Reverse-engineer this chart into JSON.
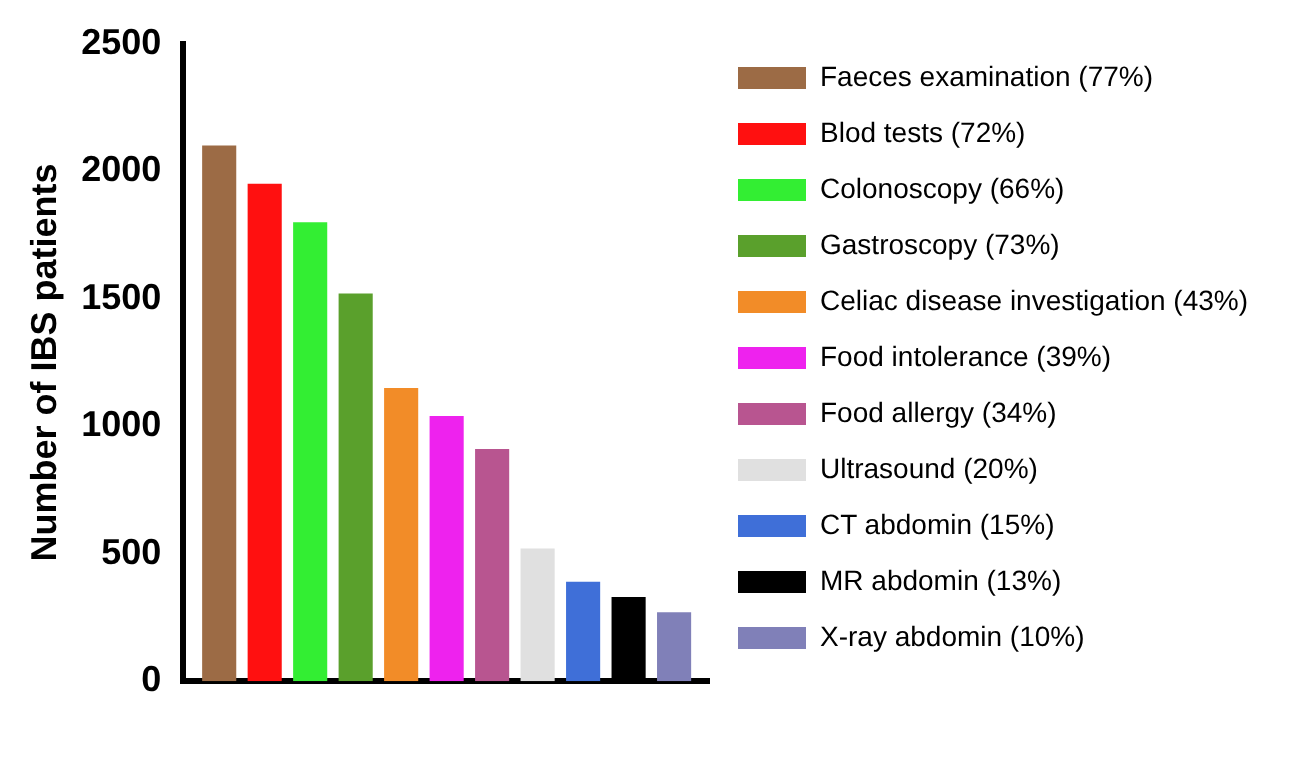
{
  "chart_data": {
    "type": "bar",
    "ylabel": "Number of IBS patients",
    "categories": [
      null
    ],
    "ylim": [
      0,
      2500
    ],
    "yticks": [
      0,
      500,
      1000,
      1500,
      2000,
      2500
    ],
    "grid": false,
    "legend": "right",
    "series": [
      {
        "name": "Faeces examination (77%)",
        "color": "#9c6b45",
        "values": [
          2100
        ]
      },
      {
        "name": "Blod tests (72%)",
        "color": "#ff1010",
        "values": [
          1950
        ]
      },
      {
        "name": "Colonoscopy (66%)",
        "color": "#33ee33",
        "values": [
          1800
        ]
      },
      {
        "name": "Gastroscopy (73%)",
        "color": "#5aa02c",
        "values": [
          1520
        ]
      },
      {
        "name": "Celiac disease investigation (43%)",
        "color": "#f28c28",
        "values": [
          1150
        ]
      },
      {
        "name": "Food intolerance (39%)",
        "color": "#ee22ee",
        "values": [
          1040
        ]
      },
      {
        "name": "Food allergy (34%)",
        "color": "#b85590",
        "values": [
          910
        ]
      },
      {
        "name": "Ultrasound (20%)",
        "color": "#e0e0e0",
        "values": [
          520
        ]
      },
      {
        "name": "CT abdomin (15%)",
        "color": "#3f6fd8",
        "values": [
          390
        ]
      },
      {
        "name": "MR abdomin (13%)",
        "color": "#000000",
        "values": [
          330
        ]
      },
      {
        "name": "X-ray abdomin (10%)",
        "color": "#8080b8",
        "values": [
          270
        ]
      }
    ]
  }
}
